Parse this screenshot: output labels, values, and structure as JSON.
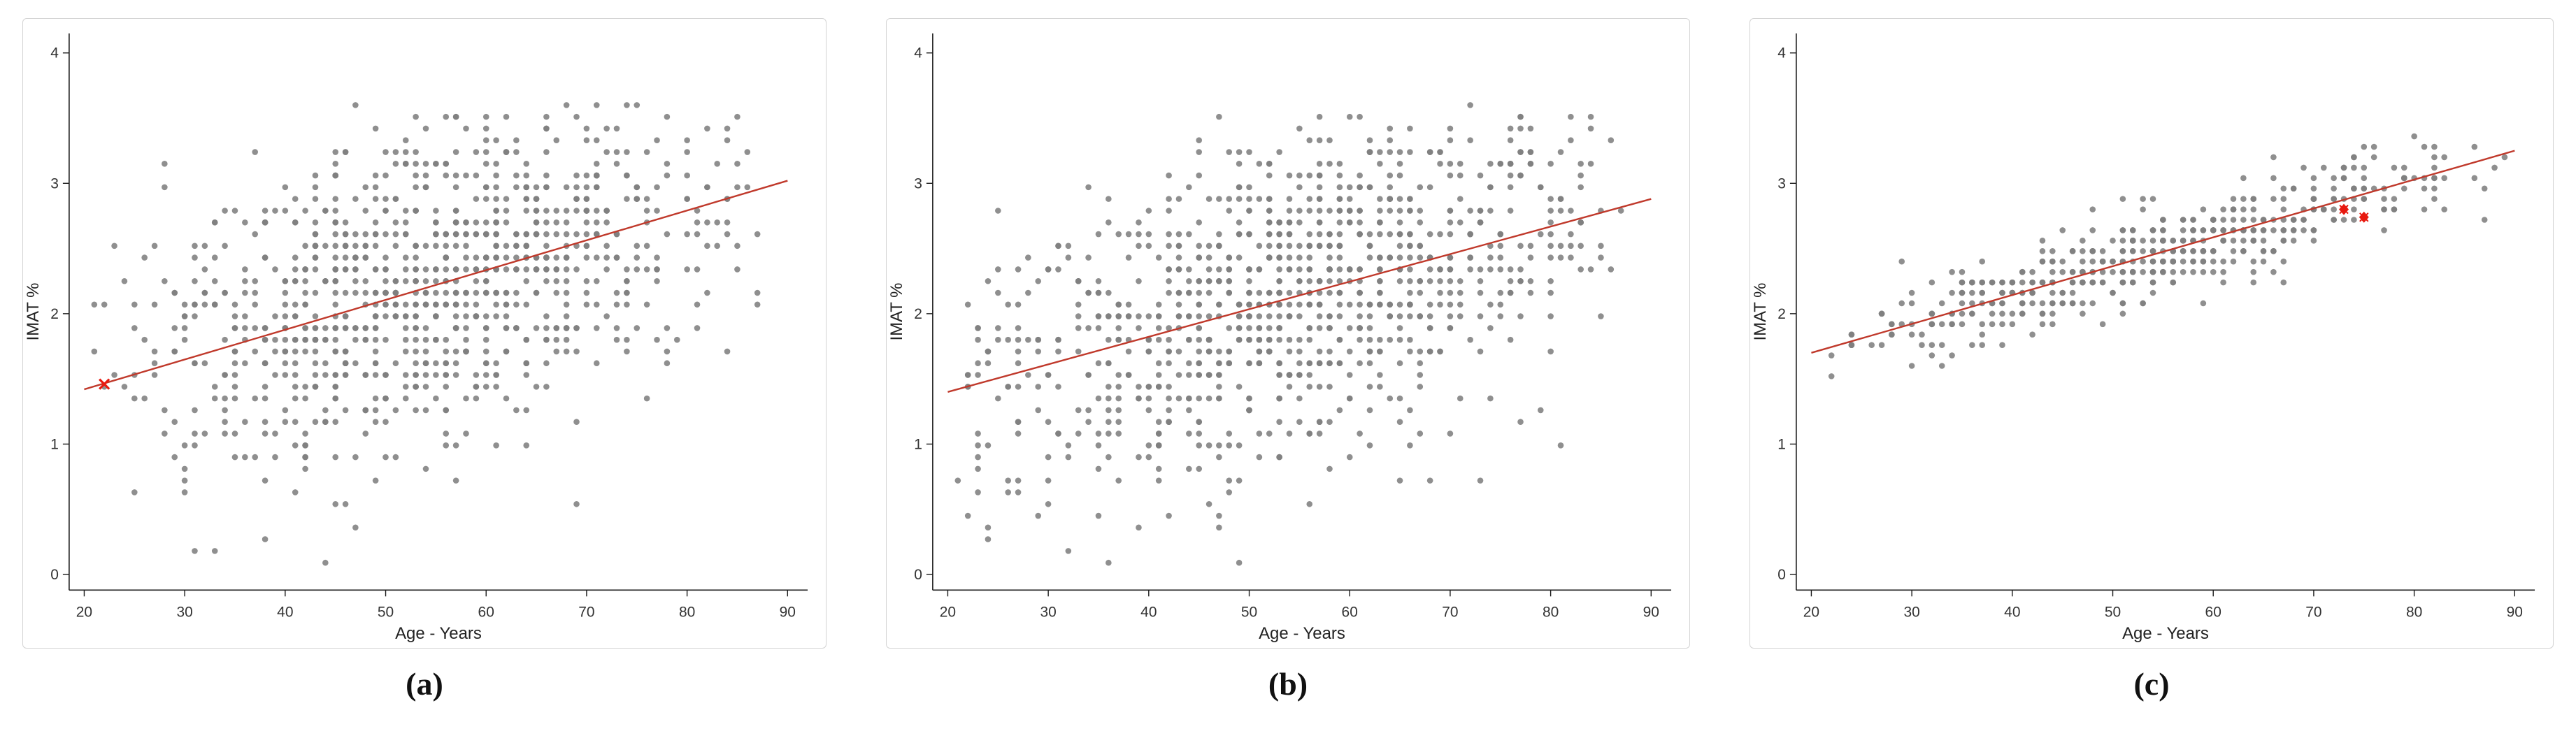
{
  "styles": {
    "dot_color": "#7f7f7f",
    "line_color": "#c0392b",
    "axis_color": "#1a1a1a",
    "border_color": "#d4d4d4",
    "tick_color": "#333333",
    "label_color": "#222222",
    "highlight_color": "#e8190f",
    "background": "#ffffff"
  },
  "chart_data": [
    {
      "type": "scatter",
      "panel": "a",
      "caption": "(a)",
      "xlabel": "Age - Years",
      "ylabel": "IMAT %",
      "x_ticks": [
        20,
        30,
        40,
        50,
        60,
        70,
        80,
        90
      ],
      "y_ticks": [
        0,
        1,
        2,
        3,
        4
      ],
      "xlim": [
        18.5,
        92
      ],
      "ylim": [
        -0.12,
        4.15
      ],
      "grid": false,
      "legend": false,
      "regression_line": {
        "x1": 20,
        "y1": 1.42,
        "x2": 90,
        "y2": 3.02
      },
      "scatter": {
        "n": 1000,
        "seed": 11,
        "x_min": 20,
        "x_max": 90,
        "slope": 0.0229,
        "intercept": 0.962,
        "noise_sd": 0.6,
        "y_clip": [
          0,
          3.62
        ],
        "x_step": 1,
        "y_step": 0.09
      },
      "highlights": [
        {
          "x": 22,
          "y": 1.46,
          "marker": "x"
        }
      ]
    },
    {
      "type": "scatter",
      "panel": "b",
      "caption": "(b)",
      "xlabel": "Age - Years",
      "ylabel": "IMAT %",
      "x_ticks": [
        20,
        30,
        40,
        50,
        60,
        70,
        80,
        90
      ],
      "y_ticks": [
        0,
        1,
        2,
        3,
        4
      ],
      "xlim": [
        18.5,
        92
      ],
      "ylim": [
        -0.12,
        4.15
      ],
      "grid": false,
      "legend": false,
      "regression_line": {
        "x1": 20,
        "y1": 1.4,
        "x2": 90,
        "y2": 2.88
      },
      "scatter": {
        "n": 1000,
        "seed": 23,
        "x_min": 20,
        "x_max": 88,
        "slope": 0.0211,
        "intercept": 0.977,
        "noise_sd": 0.62,
        "y_clip": [
          0,
          3.6
        ],
        "x_step": 1,
        "y_step": 0.09
      },
      "highlights": []
    },
    {
      "type": "scatter",
      "panel": "c",
      "caption": "(c)",
      "xlabel": "Age - Years",
      "ylabel": "IMAT %",
      "x_ticks": [
        20,
        30,
        40,
        50,
        60,
        70,
        80,
        90
      ],
      "y_ticks": [
        0,
        1,
        2,
        3,
        4
      ],
      "xlim": [
        18.5,
        92
      ],
      "ylim": [
        -0.12,
        4.15
      ],
      "grid": false,
      "legend": false,
      "regression_line": {
        "x1": 20,
        "y1": 1.7,
        "x2": 90,
        "y2": 3.25
      },
      "scatter": {
        "n": 520,
        "seed": 37,
        "x_min": 20,
        "x_max": 90,
        "slope": 0.0221,
        "intercept": 1.257,
        "noise_sd": 0.165,
        "y_clip": [
          1.0,
          3.58
        ],
        "x_step": 1,
        "y_step": 0.08
      },
      "highlights": [
        {
          "x": 73,
          "y": 2.8,
          "marker": "star"
        },
        {
          "x": 75,
          "y": 2.74,
          "marker": "star"
        }
      ]
    }
  ]
}
